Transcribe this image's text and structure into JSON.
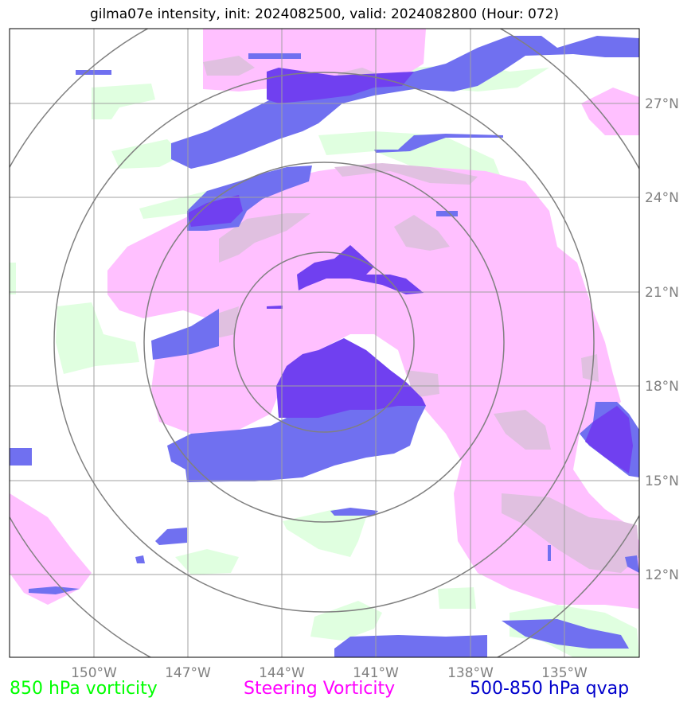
{
  "title": "gilma07e intensity, init: 2024082500, valid: 2024082800 (Hour: 072)",
  "longitude_labels": [
    "150°W",
    "147°W",
    "144°W",
    "141°W",
    "138°W",
    "135°W"
  ],
  "latitude_labels": [
    "27°N",
    "24°N",
    "21°N",
    "18°N",
    "15°N",
    "12°N"
  ],
  "legend": [
    {
      "label": "850 hPa vorticity",
      "color": "#00ff00"
    },
    {
      "label": "Steering Vorticity",
      "color": "#ff00ff"
    },
    {
      "label": "500-850 hPa qvap",
      "color": "#0000cc"
    }
  ],
  "layer_colors": {
    "vorticity_850": "#e0ffe0",
    "steering_vorticity": "#ffc0ff",
    "qvap": "#7070f0",
    "overlap_pink_green": "#e0c0e0",
    "qvap_dense": "#7040f0",
    "range_rings": "#808080",
    "gridlines": "#a0a0a0"
  }
}
